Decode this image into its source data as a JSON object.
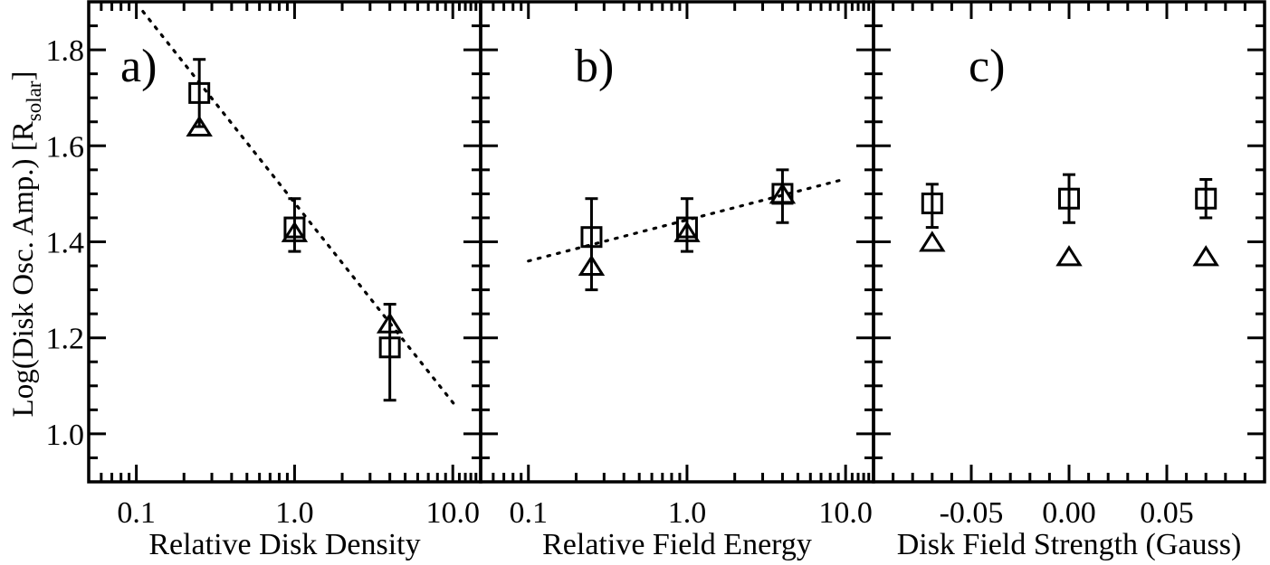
{
  "figure": {
    "background": "#ffffff",
    "ink": "#000000",
    "y_axis": {
      "label_prefix": "Log(Disk Osc. Amp.)  [R",
      "label_subscript": "solar",
      "label_suffix": "]",
      "lim": [
        0.9,
        1.9
      ],
      "major_ticks": [
        1.0,
        1.2,
        1.4,
        1.6,
        1.8
      ],
      "tick_labels": [
        "1.0",
        "1.2",
        "1.4",
        "1.6",
        "1.8"
      ],
      "minor_step": 0.05
    }
  },
  "chart_data": [
    {
      "panel_label": "a)",
      "type": "scatter",
      "xlabel": "Relative Disk Density",
      "xscale": "log",
      "xlim": [
        0.05,
        15
      ],
      "x_major_ticks": [
        0.1,
        1.0,
        10.0
      ],
      "x_tick_labels": [
        "0.1",
        "1.0",
        "10.0"
      ],
      "series": [
        {
          "name": "square",
          "marker": "square",
          "x": [
            0.25,
            1.0,
            4.0
          ],
          "y": [
            1.71,
            1.43,
            1.18
          ]
        },
        {
          "name": "triangle",
          "marker": "triangle",
          "x": [
            0.25,
            1.0,
            4.0
          ],
          "y": [
            1.64,
            1.42,
            1.23
          ]
        }
      ],
      "error_bars": [
        {
          "x": 0.25,
          "lo": 1.64,
          "hi": 1.78
        },
        {
          "x": 1.0,
          "lo": 1.38,
          "hi": 1.49
        },
        {
          "x": 4.0,
          "lo": 1.07,
          "hi": 1.27
        }
      ],
      "fit_line": {
        "style": "dotted",
        "x1": 0.11,
        "y1": 1.88,
        "x2": 10.3,
        "y2": 1.06
      }
    },
    {
      "panel_label": "b)",
      "type": "scatter",
      "xlabel": "Relative Field Energy",
      "xscale": "log",
      "xlim": [
        0.05,
        15
      ],
      "x_major_ticks": [
        0.1,
        1.0,
        10.0
      ],
      "x_tick_labels": [
        "0.1",
        "1.0",
        "10.0"
      ],
      "series": [
        {
          "name": "square",
          "marker": "square",
          "x": [
            0.25,
            1.0,
            4.0
          ],
          "y": [
            1.41,
            1.43,
            1.5
          ]
        },
        {
          "name": "triangle",
          "marker": "triangle",
          "x": [
            0.25,
            1.0,
            4.0
          ],
          "y": [
            1.35,
            1.42,
            1.5
          ]
        }
      ],
      "error_bars": [
        {
          "x": 0.25,
          "lo": 1.3,
          "hi": 1.49
        },
        {
          "x": 1.0,
          "lo": 1.38,
          "hi": 1.49
        },
        {
          "x": 4.0,
          "lo": 1.44,
          "hi": 1.55
        }
      ],
      "fit_line": {
        "style": "dotted",
        "x1": 0.1,
        "y1": 1.36,
        "x2": 9.7,
        "y2": 1.53
      }
    },
    {
      "panel_label": "c)",
      "type": "scatter",
      "xlabel": "Disk Field Strength (Gauss)",
      "xscale": "linear",
      "xlim": [
        -0.1,
        0.1
      ],
      "x_major_ticks": [
        -0.05,
        0.0,
        0.05
      ],
      "x_tick_labels": [
        "-0.05",
        "0.00",
        "0.05"
      ],
      "x_minor_step": 0.01,
      "series": [
        {
          "name": "square",
          "marker": "square",
          "x": [
            -0.07,
            0.0,
            0.07
          ],
          "y": [
            1.48,
            1.49,
            1.49
          ]
        },
        {
          "name": "triangle",
          "marker": "triangle",
          "x": [
            -0.07,
            0.0,
            0.07
          ],
          "y": [
            1.4,
            1.37,
            1.37
          ]
        }
      ],
      "error_bars": [
        {
          "x": -0.07,
          "lo": 1.43,
          "hi": 1.52
        },
        {
          "x": 0.0,
          "lo": 1.44,
          "hi": 1.54
        },
        {
          "x": 0.07,
          "lo": 1.45,
          "hi": 1.53
        }
      ],
      "fit_line": null
    }
  ]
}
